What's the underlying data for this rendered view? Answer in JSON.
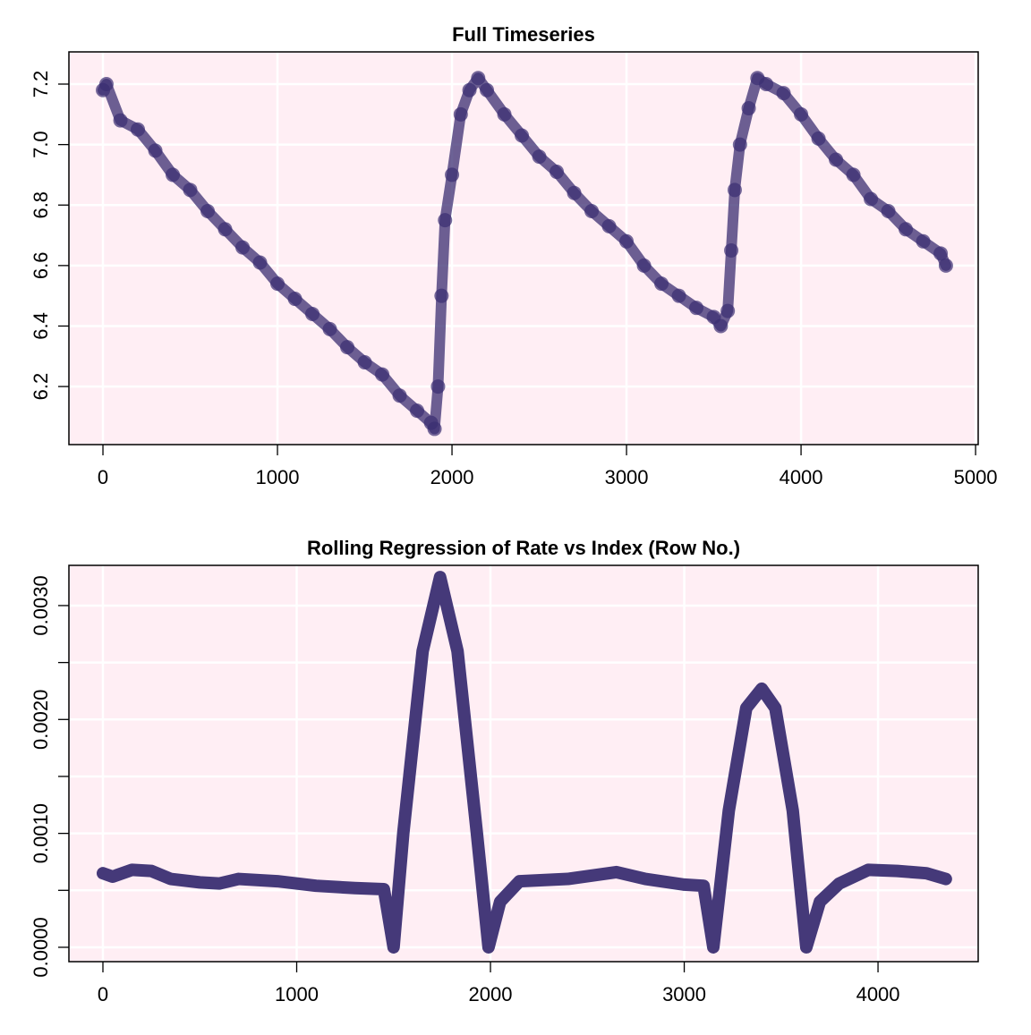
{
  "chart_data": [
    {
      "type": "scatter",
      "title": "Full Timeseries",
      "color": "#3b2e72",
      "background": "#ffeef4",
      "grid": true,
      "x": [
        0,
        20,
        100,
        200,
        300,
        400,
        500,
        600,
        700,
        800,
        900,
        1000,
        1100,
        1200,
        1300,
        1400,
        1500,
        1600,
        1700,
        1800,
        1880,
        1900,
        1920,
        1940,
        1960,
        2000,
        2050,
        2100,
        2150,
        2200,
        2300,
        2400,
        2500,
        2600,
        2700,
        2800,
        2900,
        3000,
        3100,
        3200,
        3300,
        3400,
        3500,
        3540,
        3580,
        3600,
        3620,
        3650,
        3700,
        3750,
        3800,
        3900,
        4000,
        4100,
        4200,
        4300,
        4400,
        4500,
        4600,
        4700,
        4800,
        4830
      ],
      "values": [
        7.18,
        7.2,
        7.08,
        7.05,
        6.98,
        6.9,
        6.85,
        6.78,
        6.72,
        6.66,
        6.61,
        6.54,
        6.49,
        6.44,
        6.39,
        6.33,
        6.28,
        6.24,
        6.17,
        6.12,
        6.08,
        6.06,
        6.2,
        6.5,
        6.75,
        6.9,
        7.1,
        7.18,
        7.22,
        7.18,
        7.1,
        7.03,
        6.96,
        6.91,
        6.84,
        6.78,
        6.73,
        6.68,
        6.6,
        6.54,
        6.5,
        6.46,
        6.43,
        6.4,
        6.45,
        6.65,
        6.85,
        7.0,
        7.12,
        7.22,
        7.2,
        7.17,
        7.1,
        7.02,
        6.95,
        6.9,
        6.82,
        6.78,
        6.72,
        6.68,
        6.64,
        6.6
      ],
      "xlim": [
        -195,
        5015
      ],
      "xticks": [
        0,
        1000,
        2000,
        3000,
        4000,
        5000
      ],
      "ylim": [
        6.008,
        7.3065
      ],
      "yticks": [
        6.2,
        6.4,
        6.6,
        6.8,
        {
          "value": 7,
          "label": "7.0"
        },
        7.2
      ]
    },
    {
      "type": "line",
      "title": "Rolling Regression of Rate vs Index (Row No.)",
      "color": "#3b2e72",
      "background": "#ffeef4",
      "grid": true,
      "x": [
        0,
        50,
        150,
        250,
        350,
        500,
        600,
        700,
        900,
        1100,
        1300,
        1450,
        1500,
        1550,
        1650,
        1740,
        1830,
        1930,
        1990,
        2050,
        2150,
        2400,
        2650,
        2800,
        3000,
        3100,
        3150,
        3230,
        3320,
        3400,
        3470,
        3560,
        3630,
        3700,
        3800,
        3950,
        4100,
        4250,
        4350
      ],
      "values": [
        0.00065,
        0.00062,
        0.00068,
        0.00067,
        0.0006,
        0.00057,
        0.00056,
        0.0006,
        0.00058,
        0.00054,
        0.00052,
        0.00051,
        0.0,
        0.001,
        0.0026,
        0.00325,
        0.0026,
        0.001,
        0.0,
        0.0004,
        0.00058,
        0.0006,
        0.00066,
        0.0006,
        0.00055,
        0.00054,
        0.0,
        0.0012,
        0.0021,
        0.00227,
        0.0021,
        0.0012,
        0.0,
        0.0004,
        0.00056,
        0.00068,
        0.00067,
        0.00065,
        0.0006
      ],
      "xlim": [
        -175.5,
        4517
      ],
      "xticks": [
        0,
        1000,
        2000,
        3000,
        4000
      ],
      "ylim": [
        -0.000126,
        0.003353
      ],
      "yticks": [
        {
          "value": 0,
          "label": "0.0000"
        },
        {
          "value": 0.0005,
          "label": null
        },
        {
          "value": 0.001,
          "label": "0.0010"
        },
        {
          "value": 0.0015,
          "label": null
        },
        {
          "value": 0.002,
          "label": "0.0020"
        },
        {
          "value": 0.0025,
          "label": null
        },
        {
          "value": 0.003,
          "label": "0.0030"
        }
      ]
    }
  ]
}
